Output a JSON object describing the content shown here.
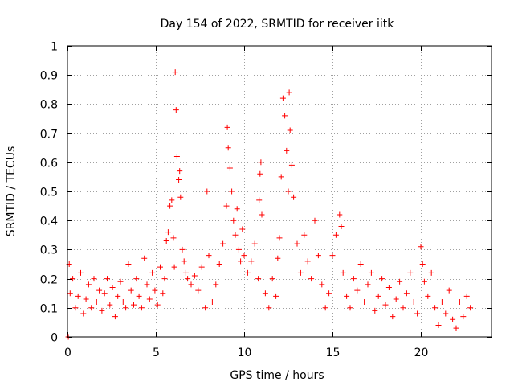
{
  "chart_data": {
    "type": "scatter",
    "title": "Day 154 of 2022, SRMTID for receiver iitk",
    "xlabel": "GPS time / hours",
    "ylabel": "SRMTID / TECUs",
    "xlim": [
      0,
      24
    ],
    "ylim": [
      0,
      1
    ],
    "xticks": [
      0,
      5,
      10,
      15,
      20
    ],
    "yticks": [
      0,
      0.1,
      0.2,
      0.3,
      0.4,
      0.5,
      0.6,
      0.7,
      0.8,
      0.9,
      1
    ],
    "grid": true,
    "marker": "plus",
    "color": "#ff0000",
    "series": [
      {
        "name": "SRMTID",
        "x": [
          0.05,
          0.1,
          0.15,
          0.3,
          0.45,
          0.6,
          0.75,
          0.9,
          1.05,
          1.2,
          1.35,
          1.5,
          1.65,
          1.8,
          1.95,
          2.1,
          2.25,
          2.4,
          2.55,
          2.7,
          2.85,
          3.0,
          3.15,
          3.3,
          3.45,
          3.6,
          3.75,
          3.9,
          4.05,
          4.2,
          4.35,
          4.5,
          4.65,
          4.8,
          4.95,
          5.1,
          5.25,
          5.4,
          5.5,
          5.6,
          5.7,
          5.8,
          5.9,
          6.0,
          6.05,
          6.1,
          6.15,
          6.2,
          6.3,
          6.35,
          6.4,
          6.5,
          6.6,
          6.7,
          6.8,
          7.0,
          7.2,
          7.4,
          7.6,
          7.8,
          7.9,
          8.0,
          8.2,
          8.4,
          8.6,
          8.8,
          9.0,
          9.05,
          9.1,
          9.2,
          9.3,
          9.4,
          9.5,
          9.6,
          9.7,
          9.8,
          9.9,
          10.0,
          10.2,
          10.4,
          10.6,
          10.8,
          10.85,
          10.9,
          10.95,
          11.0,
          11.2,
          11.4,
          11.6,
          11.8,
          11.9,
          12.0,
          12.1,
          12.2,
          12.3,
          12.4,
          12.5,
          12.55,
          12.6,
          12.7,
          12.8,
          13.0,
          13.2,
          13.4,
          13.6,
          13.8,
          14.0,
          14.2,
          14.4,
          14.6,
          14.8,
          15.0,
          15.2,
          15.4,
          15.5,
          15.6,
          15.8,
          16.0,
          16.2,
          16.4,
          16.6,
          16.8,
          17.0,
          17.2,
          17.4,
          17.6,
          17.8,
          18.0,
          18.2,
          18.4,
          18.6,
          18.8,
          19.0,
          19.2,
          19.4,
          19.6,
          19.8,
          20.0,
          20.1,
          20.2,
          20.4,
          20.6,
          20.8,
          21.0,
          21.2,
          21.4,
          21.6,
          21.8,
          22.0,
          22.2,
          22.4,
          22.6,
          22.8
        ],
        "y": [
          0.0,
          0.25,
          0.15,
          0.2,
          0.1,
          0.14,
          0.22,
          0.08,
          0.13,
          0.18,
          0.1,
          0.2,
          0.12,
          0.16,
          0.09,
          0.15,
          0.2,
          0.11,
          0.17,
          0.07,
          0.14,
          0.19,
          0.12,
          0.1,
          0.25,
          0.16,
          0.11,
          0.2,
          0.14,
          0.1,
          0.27,
          0.18,
          0.13,
          0.22,
          0.16,
          0.11,
          0.24,
          0.15,
          0.2,
          0.33,
          0.36,
          0.45,
          0.47,
          0.34,
          0.24,
          0.91,
          0.78,
          0.62,
          0.54,
          0.57,
          0.48,
          0.3,
          0.26,
          0.22,
          0.2,
          0.18,
          0.21,
          0.16,
          0.24,
          0.1,
          0.5,
          0.28,
          0.12,
          0.18,
          0.25,
          0.32,
          0.45,
          0.72,
          0.65,
          0.58,
          0.5,
          0.4,
          0.35,
          0.44,
          0.3,
          0.26,
          0.37,
          0.28,
          0.22,
          0.26,
          0.32,
          0.2,
          0.47,
          0.56,
          0.6,
          0.42,
          0.15,
          0.1,
          0.2,
          0.14,
          0.27,
          0.34,
          0.55,
          0.82,
          0.76,
          0.64,
          0.5,
          0.84,
          0.71,
          0.59,
          0.48,
          0.32,
          0.22,
          0.35,
          0.26,
          0.2,
          0.4,
          0.28,
          0.18,
          0.1,
          0.15,
          0.28,
          0.35,
          0.42,
          0.38,
          0.22,
          0.14,
          0.1,
          0.2,
          0.16,
          0.25,
          0.12,
          0.18,
          0.22,
          0.09,
          0.14,
          0.2,
          0.11,
          0.17,
          0.07,
          0.13,
          0.19,
          0.1,
          0.15,
          0.22,
          0.12,
          0.08,
          0.31,
          0.25,
          0.19,
          0.14,
          0.22,
          0.1,
          0.04,
          0.12,
          0.08,
          0.16,
          0.06,
          0.03,
          0.12,
          0.07,
          0.14,
          0.1
        ]
      }
    ]
  }
}
